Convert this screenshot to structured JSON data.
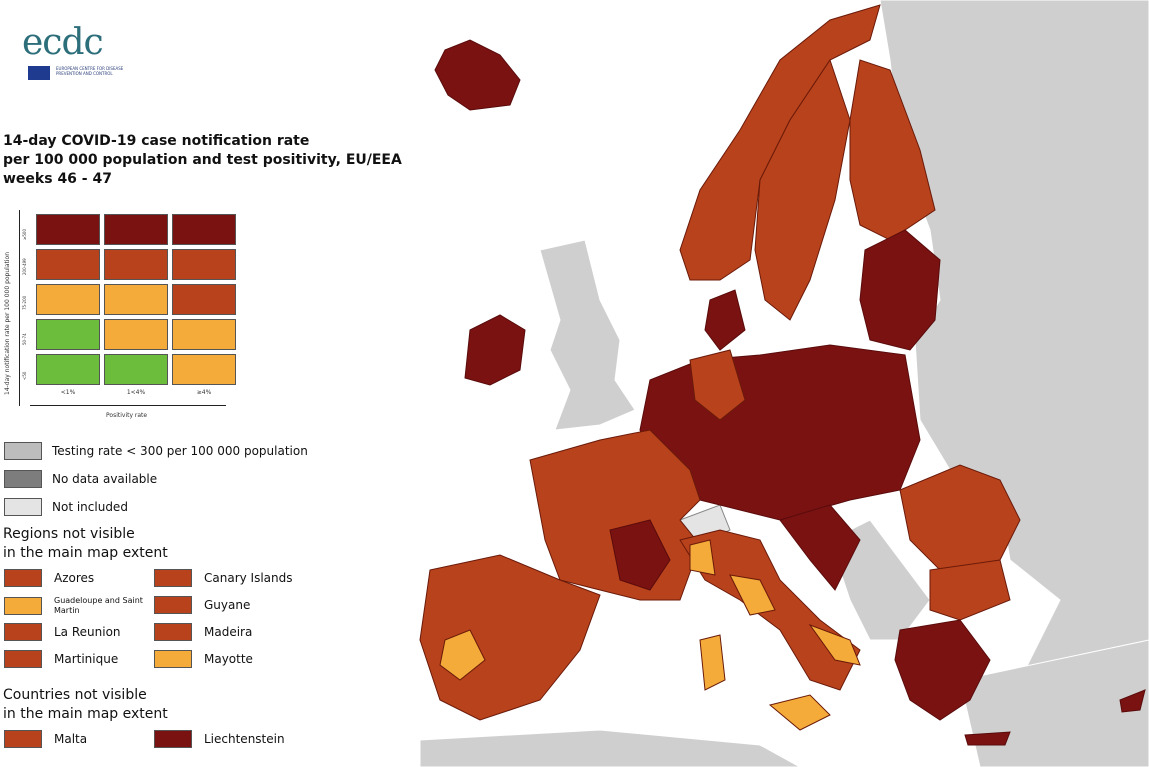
{
  "header": {
    "logo": "ecdc",
    "logo_subtitle": "EUROPEAN CENTRE FOR DISEASE PREVENTION AND CONTROL",
    "title_lines": [
      "14-day COVID-19 case notification rate",
      "per 100 000 population and test positivity, EU/EEA",
      "weeks 46 - 47"
    ]
  },
  "matrix": {
    "y_label": "14-day notification rate per 100 000 population",
    "x_label": "Positivity rate",
    "columns": [
      "<1%",
      "1<4%",
      "≥4%"
    ],
    "rows": [
      "≥500",
      "200-499",
      "75-200",
      "50-74",
      "<50"
    ],
    "cells": [
      [
        "#7a1212",
        "#7a1212",
        "#7a1212"
      ],
      [
        "#b8421b",
        "#b8421b",
        "#b8421b"
      ],
      [
        "#f4ab3a",
        "#f4ab3a",
        "#b8421b"
      ],
      [
        "#6cbd3b",
        "#f4ab3a",
        "#f4ab3a"
      ],
      [
        "#6cbd3b",
        "#6cbd3b",
        "#f4ab3a"
      ]
    ]
  },
  "status_legend": [
    {
      "label": "Testing rate < 300 per 100 000 population",
      "color": "#bdbdbd"
    },
    {
      "label": "No data available",
      "color": "#7d7d7d"
    },
    {
      "label": "Not included",
      "color": "#e4e4e4"
    }
  ],
  "regions": {
    "title_lines": [
      "Regions not visible",
      "in the main map extent"
    ],
    "items": [
      {
        "label": "Azores",
        "color": "#b8421b"
      },
      {
        "label": "Canary Islands",
        "color": "#b8421b"
      },
      {
        "label": "Guadeloupe and Saint Martin",
        "color": "#f4ab3a"
      },
      {
        "label": "Guyane",
        "color": "#b8421b"
      },
      {
        "label": "La Reunion",
        "color": "#b8421b"
      },
      {
        "label": "Madeira",
        "color": "#b8421b"
      },
      {
        "label": "Martinique",
        "color": "#b8421b"
      },
      {
        "label": "Mayotte",
        "color": "#f4ab3a"
      }
    ]
  },
  "countries": {
    "title_lines": [
      "Countries not visible",
      "in the main map extent"
    ],
    "items": [
      {
        "label": "Malta",
        "color": "#b8421b"
      },
      {
        "label": "Liechtenstein",
        "color": "#7a1212"
      }
    ]
  }
}
